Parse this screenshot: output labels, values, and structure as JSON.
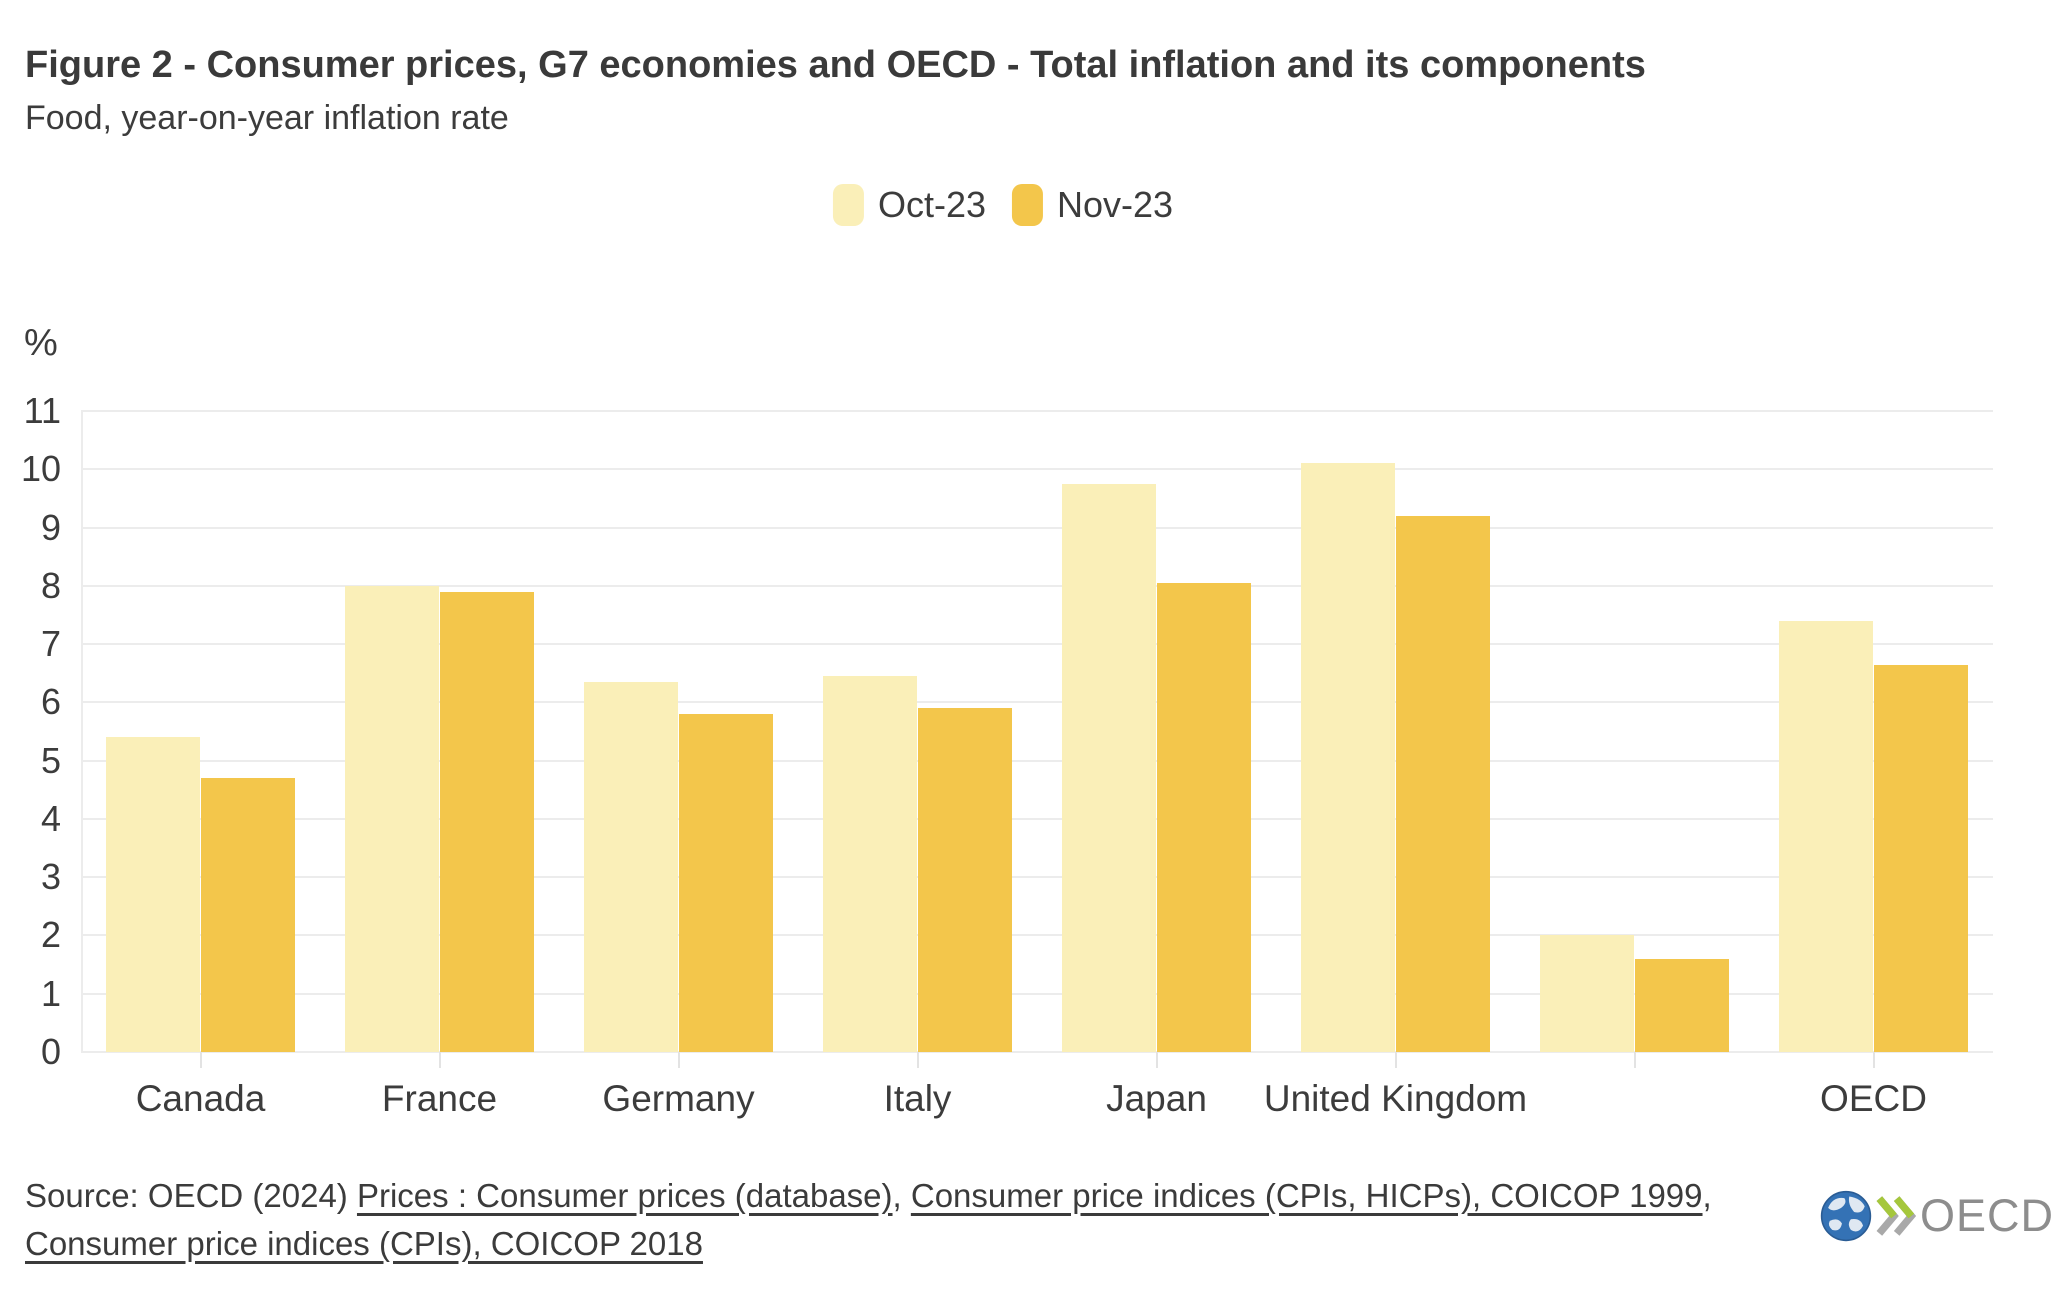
{
  "header": {
    "title": "Figure 2 - Consumer prices, G7 economies and OECD - Total inflation and its components",
    "subtitle": "Food, year-on-year inflation rate"
  },
  "chart_data": {
    "type": "bar",
    "title": "Figure 2 - Consumer prices, G7 economies and OECD - Total inflation and its components",
    "subtitle": "Food, year-on-year inflation rate",
    "ylabel": "%",
    "xlabel": "",
    "ylim": [
      0,
      11
    ],
    "yticks": [
      0,
      1,
      2,
      3,
      4,
      5,
      6,
      7,
      8,
      9,
      10,
      11
    ],
    "grid": true,
    "legend_position": "top-center",
    "categories": [
      "Canada",
      "France",
      "Germany",
      "Italy",
      "Japan",
      "United Kingdom",
      "",
      "OECD"
    ],
    "series": [
      {
        "name": "Oct-23",
        "color": "#FAEFB8",
        "values": [
          5.4,
          8.0,
          6.35,
          6.45,
          9.75,
          10.1,
          2.0,
          7.4
        ]
      },
      {
        "name": "Nov-23",
        "color": "#F3C64B",
        "values": [
          4.7,
          7.9,
          5.8,
          5.9,
          8.05,
          9.2,
          1.6,
          6.65
        ]
      }
    ]
  },
  "source": {
    "segments": [
      {
        "text": "Source: OECD (2024) ",
        "link": false
      },
      {
        "text": "Prices : Consumer prices (database)",
        "link": true
      },
      {
        "text": ", ",
        "link": false
      },
      {
        "text": "Consumer price indices (CPIs, HICPs), COICOP 1999",
        "link": true
      },
      {
        "text": ", ",
        "link": false
      },
      {
        "text": "Consumer price indices (CPIs), COICOP 2018",
        "link": true
      }
    ]
  },
  "logo": {
    "text": "OECD"
  },
  "colors": {
    "oct_series": "#FAEFB8",
    "nov_series": "#F3C64B",
    "gridline": "#ececec",
    "text": "#3c3c3c",
    "logo_text": "#8d8d8d",
    "logo_globe": "#3472b5",
    "logo_chevron_green": "#a5c73c",
    "logo_chevron_gray": "#a9a9a9"
  }
}
